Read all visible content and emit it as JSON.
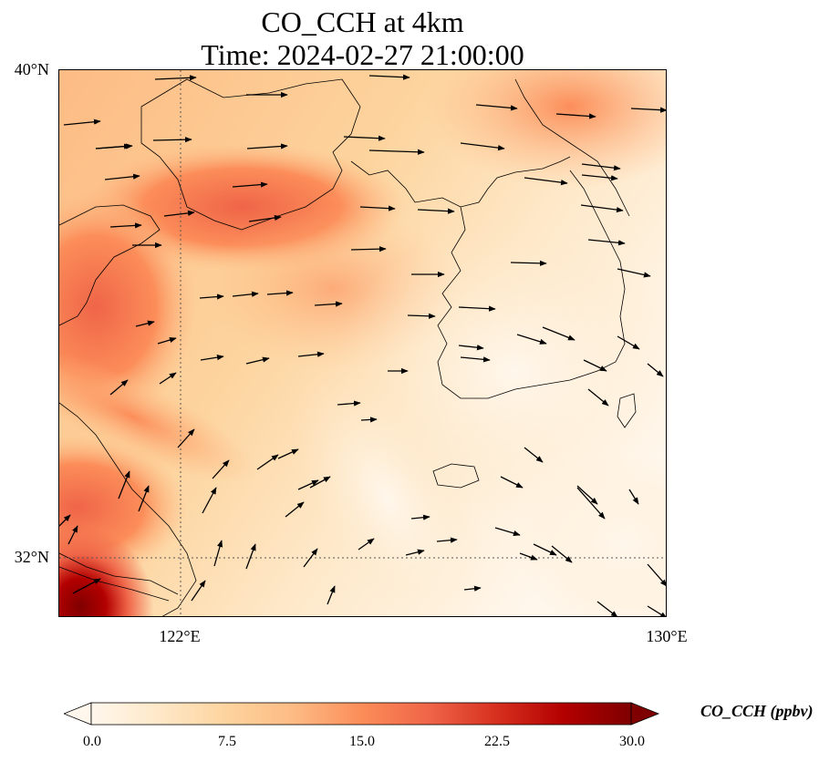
{
  "title": {
    "line1": "CO_CCH at 4km",
    "line2": "Time: 2024-02-27 21:00:00"
  },
  "axes": {
    "lat_ticks": [
      "40°N",
      "32°N"
    ],
    "lon_ticks": [
      "122°E",
      "130°E"
    ]
  },
  "colorbar": {
    "label": "CO_CCH (ppbv)",
    "ticks": [
      "0.0",
      "7.5",
      "15.0",
      "22.5",
      "30.0"
    ],
    "range": [
      0,
      30
    ],
    "extend": "both",
    "colormap": "OrRd",
    "colors": [
      "#fff7ec",
      "#fee8c8",
      "#fdd49e",
      "#fdbb84",
      "#fc8d59",
      "#ef6548",
      "#d7301f",
      "#b30000",
      "#7f0000"
    ]
  },
  "map": {
    "extent": {
      "lon_min": 120,
      "lon_max": 130,
      "lat_min": 31,
      "lat_max": 40
    },
    "gridlines": "dotted",
    "wind_vectors": true
  }
}
